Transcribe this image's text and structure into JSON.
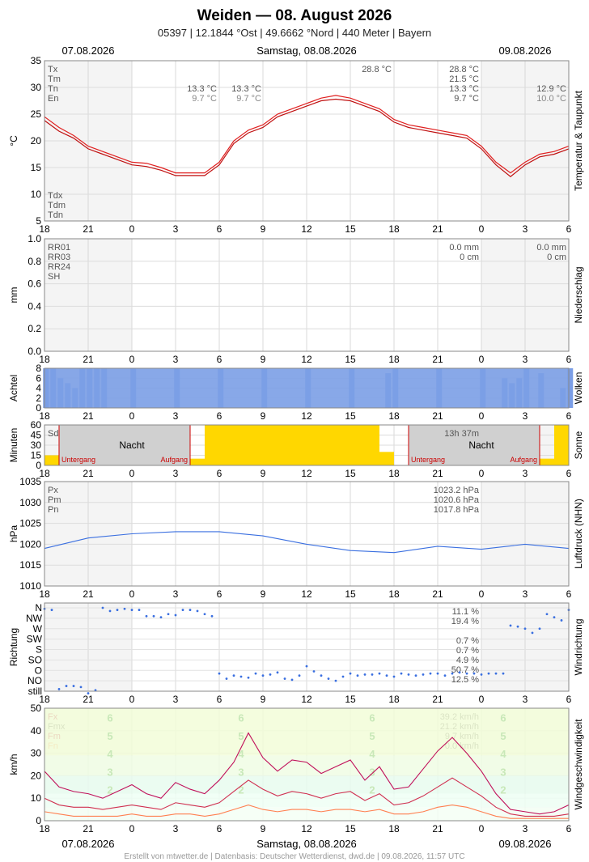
{
  "header": {
    "title": "Weiden  —  08. August 2026",
    "subtitle": "05397  |  12.1844 °Ost  |  49.6662 °Nord  |  440 Meter  |  Bayern",
    "date_left": "07.08.2026",
    "date_center": "Samstag, 08.08.2026",
    "date_right": "09.08.2026"
  },
  "footer": {
    "date_left": "07.08.2026",
    "date_center": "Samstag, 08.08.2026",
    "date_right": "09.08.2026",
    "credit": "Erstellt von mtwetter.de | Datenbasis: Deutscher Wetterdienst, dwd.de | 09.08.2026, 11:57 UTC"
  },
  "x_ticks": [
    "18",
    "21",
    "0",
    "3",
    "6",
    "9",
    "12",
    "15",
    "18",
    "21",
    "0",
    "3",
    "6"
  ],
  "colors": {
    "accent_red": "#e02020",
    "blue": "#3a6fe0",
    "cloud": "#7b9ee6",
    "sun": "#ffd700",
    "night": "#c8c8c8"
  },
  "chart_data": [
    {
      "type": "line",
      "side_label": "Temperatur & Taupunkt",
      "ylabel": "°C",
      "ylim": [
        5,
        35
      ],
      "yticks": [
        5,
        10,
        15,
        20,
        25,
        30,
        35
      ],
      "legend_top": [
        "Tx",
        "Tm",
        "Tn",
        "En"
      ],
      "legend_bottom": [
        "Tdx",
        "Tdm",
        "Tdn"
      ],
      "annotations": [
        {
          "col": "day1",
          "values": [
            "13.3 °C",
            "9.7 °C"
          ]
        },
        {
          "col": "day2a",
          "values": [
            "13.3 °C",
            "9.7 °C"
          ]
        },
        {
          "col": "day2b",
          "values": [
            "28.8 °C",
            "21.5 °C",
            "13.3 °C",
            "9.7 °C"
          ]
        },
        {
          "col": "day2peak",
          "values": [
            "28.8 °C"
          ]
        },
        {
          "col": "day3",
          "values": [
            "12.9 °C",
            "10.0 °C"
          ]
        }
      ],
      "x_hours": [
        -6,
        -5,
        -4,
        -3,
        -2,
        -1,
        0,
        1,
        2,
        3,
        4,
        5,
        6,
        7,
        8,
        9,
        10,
        11,
        12,
        13,
        14,
        15,
        16,
        17,
        18,
        19,
        20,
        21,
        22,
        23,
        24,
        25,
        26,
        27,
        28,
        29,
        30
      ],
      "series": [
        {
          "name": "Tx",
          "values": [
            24.5,
            22.5,
            21,
            19,
            18,
            17,
            16,
            15.8,
            15,
            14,
            14,
            14,
            16,
            20,
            22,
            23,
            25,
            26,
            27,
            28,
            28.5,
            28,
            27,
            26,
            24,
            23,
            22.5,
            22,
            21.5,
            21,
            19,
            16,
            14,
            16,
            17.5,
            18,
            19
          ]
        },
        {
          "name": "Tn",
          "values": [
            23.8,
            21.8,
            20.5,
            18.5,
            17.5,
            16.5,
            15.5,
            15.2,
            14.5,
            13.5,
            13.5,
            13.5,
            15.5,
            19.5,
            21.5,
            22.5,
            24.5,
            25.5,
            26.5,
            27.5,
            27.8,
            27.5,
            26.5,
            25.5,
            23.5,
            22.5,
            22,
            21.5,
            21,
            20.5,
            18.5,
            15.5,
            13.3,
            15.5,
            17,
            17.5,
            18.5
          ]
        }
      ]
    },
    {
      "type": "bar",
      "side_label": "Niederschlag",
      "ylabel": "mm",
      "ylim": [
        0,
        1.0
      ],
      "yticks": [
        "0.0",
        "0.2",
        "0.4",
        "0.6",
        "0.8",
        "1.0"
      ],
      "legend": [
        "RR01",
        "RR03",
        "RR24",
        "SH"
      ],
      "annotations": [
        {
          "col": "day2",
          "values": [
            "0.0 mm",
            "0 cm"
          ]
        },
        {
          "col": "day3",
          "values": [
            "0.0 mm",
            "0 cm"
          ]
        }
      ],
      "values": []
    },
    {
      "type": "bar",
      "side_label": "Wolken",
      "ylabel": "Achtel",
      "ylim": [
        0,
        8
      ],
      "yticks": [
        "0",
        "2",
        "4",
        "6",
        "8"
      ],
      "x_hours": [
        -6,
        -5.5,
        -5,
        -4.5,
        -4,
        -3.5,
        -3,
        -2.5,
        -2,
        0,
        3,
        6,
        9,
        12,
        15,
        17.5,
        18,
        21,
        24,
        25.5,
        26,
        26.5,
        27,
        28,
        29.5,
        30
      ],
      "values": [
        8,
        8,
        6,
        5,
        4,
        8,
        8,
        8,
        8,
        8,
        8,
        8,
        8,
        8,
        8,
        7,
        8,
        8,
        8,
        6,
        5,
        6,
        8,
        7,
        4,
        8
      ]
    },
    {
      "type": "bar",
      "side_label": "Sonne",
      "ylabel": "Minuten",
      "ylim": [
        0,
        60
      ],
      "yticks": [
        "0",
        "15",
        "30",
        "45",
        "60"
      ],
      "legend": [
        "Sd24"
      ],
      "day_length": "13h 37m",
      "night_label": "Nacht",
      "sunset_label": "Untergang",
      "sunrise_label": "Aufgang",
      "x_hours": [
        -6,
        -5,
        4,
        5,
        6,
        17,
        18,
        19,
        28,
        29,
        30
      ],
      "values": [
        15,
        0,
        0,
        10,
        60,
        60,
        20,
        0,
        0,
        10,
        60
      ]
    },
    {
      "type": "line",
      "side_label": "Luftdruck (NHN)",
      "ylabel": "hPa",
      "ylim": [
        1010,
        1035
      ],
      "yticks": [
        "1010",
        "1015",
        "1020",
        "1025",
        "1030",
        "1035"
      ],
      "legend": [
        "Px",
        "Pm",
        "Pn"
      ],
      "annotations": [
        {
          "col": "day2",
          "values": [
            "1023.2 hPa",
            "1020.6 hPa",
            "1017.8 hPa"
          ]
        }
      ],
      "x_hours": [
        -6,
        -3,
        0,
        3,
        6,
        9,
        12,
        15,
        18,
        21,
        24,
        27,
        30
      ],
      "values": [
        1019,
        1021.5,
        1022.5,
        1023,
        1023,
        1022,
        1020,
        1018.5,
        1018,
        1019.5,
        1018.8,
        1020,
        1019
      ]
    },
    {
      "type": "scatter",
      "side_label": "Windrichtung",
      "ylabel": "Richtung",
      "categories": [
        "N",
        "NW",
        "W",
        "SW",
        "S",
        "SO",
        "O",
        "NO",
        "still"
      ],
      "annotations": [
        {
          "col": "day2",
          "values": [
            "11.1 %",
            "19.4 %",
            "",
            "0.7 %",
            "0.7 %",
            "4.9 %",
            "50.7 %",
            "12.5 %"
          ]
        }
      ],
      "x_hours": [
        -6,
        -5.5,
        -5,
        -4.5,
        -4,
        -3.5,
        -3,
        -2.5,
        -2,
        -1.5,
        -1,
        -0.5,
        0,
        0.5,
        1,
        1.5,
        2,
        2.5,
        3,
        3.5,
        4,
        4.5,
        5,
        5.5,
        6,
        6.5,
        7,
        7.5,
        8,
        8.5,
        9,
        9.5,
        10,
        10.5,
        11,
        11.5,
        12,
        12.5,
        13,
        13.5,
        14,
        14.5,
        15,
        15.5,
        16,
        16.5,
        17,
        17.5,
        18,
        18.5,
        19,
        19.5,
        20,
        20.5,
        21,
        21.5,
        22,
        22.5,
        23,
        23.5,
        24,
        24.5,
        25,
        25.5,
        26,
        26.5,
        27,
        27.5,
        28,
        28.5,
        29,
        29.5,
        30
      ],
      "values": [
        0.1,
        0.2,
        7.8,
        7.5,
        7.5,
        7.6,
        8.2,
        7.9,
        0,
        0.3,
        0.2,
        0.1,
        0.2,
        0.2,
        0.8,
        0.8,
        0.9,
        0.6,
        0.7,
        0.2,
        0.2,
        0.3,
        0.6,
        0.8,
        6.3,
        6.8,
        6.5,
        6.6,
        6.7,
        6.3,
        6.5,
        6.4,
        6.2,
        6.8,
        6.9,
        6.5,
        5.6,
        6.1,
        6.5,
        6.8,
        7.0,
        6.6,
        6.3,
        6.5,
        6.4,
        6.4,
        6.3,
        6.5,
        6.6,
        6.3,
        6.4,
        6.5,
        6.4,
        6.3,
        6.3,
        6.5,
        6.3,
        6.2,
        6.3,
        6.3,
        6.4,
        6.3,
        6.3,
        6.3,
        1.7,
        1.8,
        2.0,
        2.4,
        2.0,
        0.6,
        0.9,
        1.2,
        0.2
      ]
    },
    {
      "type": "line",
      "side_label": "Windgeschwindigkeit",
      "ylabel": "km/h",
      "ylim": [
        0,
        50
      ],
      "yticks": [
        "0",
        "10",
        "20",
        "30",
        "40",
        "50"
      ],
      "legend": [
        "Fx",
        "Fmx",
        "Fm",
        "Fn"
      ],
      "annotations": [
        {
          "col": "day2",
          "values": [
            "39.2 km/h",
            "21.2 km/h",
            "9.7 km/h",
            "0.0 km/h"
          ]
        }
      ],
      "beaufort": [
        "6",
        "5",
        "4",
        "3",
        "2"
      ],
      "x_hours": [
        -6,
        -5,
        -4,
        -3,
        -2,
        -1,
        0,
        1,
        2,
        3,
        4,
        5,
        6,
        7,
        8,
        9,
        10,
        11,
        12,
        13,
        14,
        15,
        16,
        17,
        18,
        19,
        20,
        21,
        22,
        23,
        24,
        25,
        26,
        27,
        28,
        29,
        30
      ],
      "series": [
        {
          "name": "Fx",
          "values": [
            22,
            15,
            13,
            12,
            10,
            13,
            16,
            12,
            10,
            17,
            14,
            12,
            18,
            26,
            39,
            28,
            22,
            27,
            26,
            21,
            24,
            27,
            18,
            24,
            14,
            15,
            23,
            31,
            37,
            30,
            22,
            12,
            5,
            4,
            3,
            4,
            7
          ]
        },
        {
          "name": "Fm",
          "values": [
            10,
            7,
            6,
            6,
            5,
            6,
            7,
            6,
            5,
            8,
            7,
            6,
            8,
            13,
            18,
            14,
            11,
            13,
            12,
            10,
            12,
            13,
            9,
            12,
            7,
            8,
            11,
            15,
            19,
            15,
            11,
            6,
            3,
            2,
            2,
            2,
            3
          ]
        },
        {
          "name": "Fn",
          "values": [
            4,
            3,
            2,
            2,
            2,
            2,
            3,
            2,
            2,
            3,
            3,
            2,
            3,
            5,
            7,
            5,
            4,
            5,
            5,
            4,
            5,
            5,
            4,
            5,
            3,
            3,
            4,
            6,
            7,
            6,
            4,
            2,
            1,
            1,
            1,
            1,
            1
          ]
        }
      ]
    }
  ]
}
